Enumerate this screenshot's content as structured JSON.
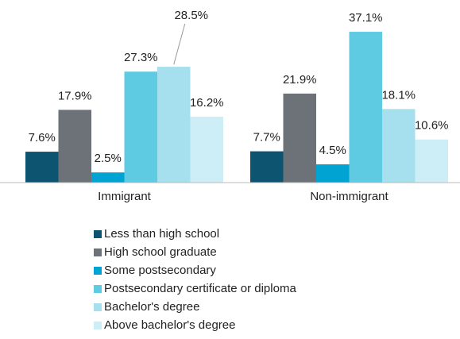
{
  "chart_data": {
    "type": "bar",
    "categories": [
      "Immigrant",
      "Non-immigrant"
    ],
    "series": [
      {
        "name": "Less than high school",
        "color": "#0d5471",
        "values": [
          7.6,
          7.7
        ],
        "value_labels": [
          "7.6%",
          "7.7%"
        ]
      },
      {
        "name": "High school graduate",
        "color": "#6d7278",
        "values": [
          17.9,
          21.9
        ],
        "value_labels": [
          "17.9%",
          "21.9%"
        ]
      },
      {
        "name": "Some postsecondary",
        "color": "#00a3d1",
        "values": [
          2.5,
          4.5
        ],
        "value_labels": [
          "2.5%",
          "4.5%"
        ]
      },
      {
        "name": "Postsecondary certificate or diploma",
        "color": "#5ecbe3",
        "values": [
          27.3,
          37.1
        ],
        "value_labels": [
          "27.3%",
          "37.1%"
        ]
      },
      {
        "name": "Bachelor's degree",
        "color": "#a6e0ee",
        "values": [
          28.5,
          18.1
        ],
        "value_labels": [
          "28.5%",
          "18.1%"
        ]
      },
      {
        "name": "Above bachelor's degree",
        "color": "#cdeef6",
        "values": [
          16.2,
          10.6
        ],
        "value_labels": [
          "16.2%",
          "10.6%"
        ]
      }
    ]
  }
}
